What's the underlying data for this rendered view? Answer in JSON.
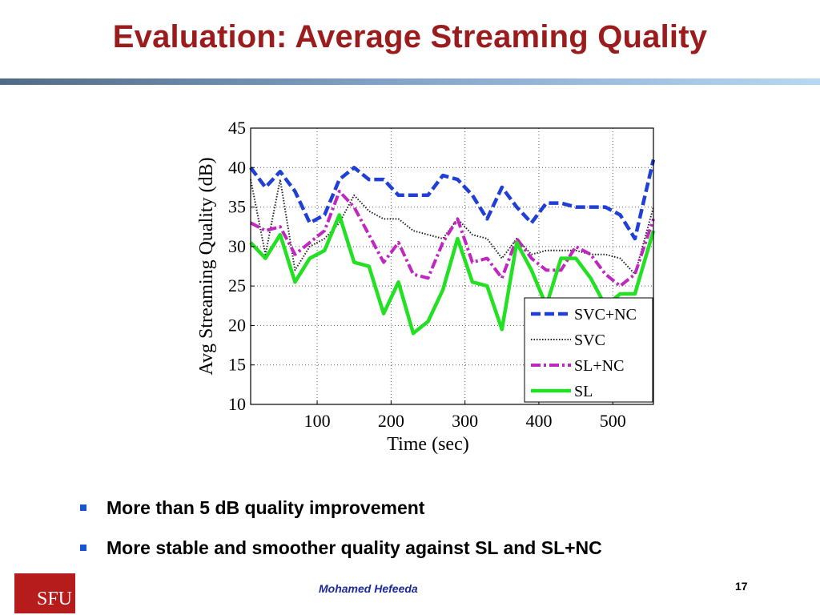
{
  "slide": {
    "title": "Evaluation: Average Streaming Quality",
    "bullets": [
      "More than 5 dB quality improvement",
      "More stable and smoother quality against SL and SL+NC"
    ],
    "footer_author": "Mohamed  Hefeeda",
    "page_number": "17",
    "logo_text": "SFU",
    "colors": {
      "title": "#9b1c1c",
      "bullet": "#1a53d1",
      "author": "#1a2a9c",
      "logo": "#b71c1c"
    }
  },
  "chart_data": {
    "type": "line",
    "xlabel": "Time (sec)",
    "ylabel": "Avg Streaming Quality (dB)",
    "xlim": [
      10,
      555
    ],
    "ylim": [
      10,
      45
    ],
    "xticks": [
      100,
      200,
      300,
      400,
      500
    ],
    "yticks": [
      10,
      15,
      20,
      25,
      30,
      35,
      40,
      45
    ],
    "grid": true,
    "legend_position": "bottom-right",
    "x": [
      10,
      30,
      50,
      70,
      90,
      110,
      130,
      150,
      170,
      190,
      210,
      230,
      250,
      270,
      290,
      310,
      330,
      350,
      370,
      390,
      410,
      430,
      450,
      470,
      490,
      510,
      530,
      555
    ],
    "series": [
      {
        "name": "SVC+NC",
        "color": "#1f3fd6",
        "style": "dashed",
        "values": [
          40,
          37.5,
          39.5,
          37,
          33,
          34,
          38.5,
          40,
          38.5,
          38.5,
          36.5,
          36.5,
          36.5,
          39,
          38.5,
          36.5,
          33.5,
          37.5,
          35,
          33,
          35.5,
          35.5,
          35,
          35,
          35,
          34,
          31,
          41
        ]
      },
      {
        "name": "SVC",
        "color": "#222222",
        "style": "dotted",
        "values": [
          38.5,
          29,
          38.5,
          27,
          30,
          31,
          33,
          36.5,
          34.5,
          33.5,
          33.5,
          32,
          31.5,
          31,
          33.5,
          31.5,
          31,
          28.5,
          31,
          29,
          29.5,
          29.5,
          29.5,
          29,
          29,
          28.5,
          26.5,
          35
        ]
      },
      {
        "name": "SL+NC",
        "color": "#c026c0",
        "style": "dashdot",
        "values": [
          33,
          32,
          32.5,
          29,
          30.5,
          32,
          37,
          35,
          31.5,
          28,
          30.5,
          26.5,
          26,
          30.5,
          33.5,
          28,
          28.5,
          26,
          31,
          28.5,
          27,
          27,
          30,
          29,
          26.5,
          25,
          26.5,
          33.5
        ]
      },
      {
        "name": "SL",
        "color": "#22e022",
        "style": "solid",
        "values": [
          30.5,
          28.5,
          31.5,
          25.5,
          28.5,
          29.5,
          34,
          28,
          27.5,
          21.5,
          25.5,
          19,
          20.5,
          24.5,
          31,
          25.5,
          25,
          19.5,
          30.5,
          27,
          22.5,
          28.5,
          28.5,
          26,
          22.5,
          24,
          24,
          32
        ]
      }
    ]
  }
}
